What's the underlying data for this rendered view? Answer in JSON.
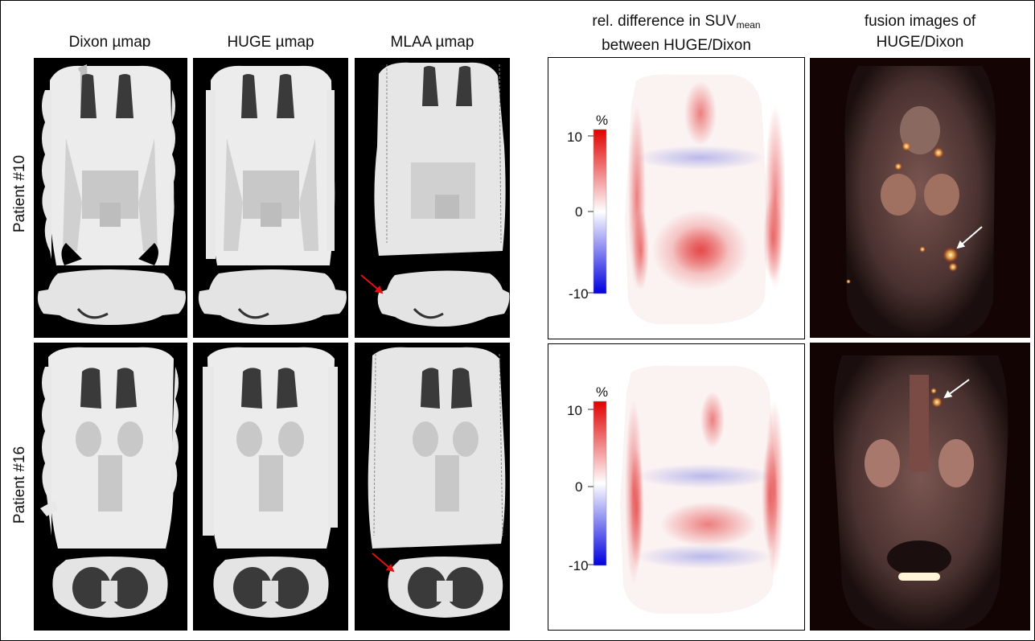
{
  "columns": [
    {
      "title": "Dixon µmap"
    },
    {
      "title": "HUGE µmap"
    },
    {
      "title": "MLAA µmap"
    },
    {
      "title_pre": "rel. difference in SUV",
      "title_sub": "mean",
      "title_line2": "between HUGE/Dixon"
    },
    {
      "title_line1": "fusion images of",
      "title_line2": "HUGE/Dixon"
    }
  ],
  "rows": [
    {
      "label": "Patient #10"
    },
    {
      "label": "Patient #16"
    }
  ],
  "colorbar": {
    "unit": "%",
    "ticks": [
      "10",
      "0",
      "-10"
    ],
    "range": [
      -10,
      10
    ],
    "colors": {
      "max": "#e00000",
      "mid": "#ffffff",
      "min": "#0000e0"
    }
  },
  "annotations": {
    "red_arrow_color": "#e01010",
    "white_arrow_color": "#ffffff"
  }
}
